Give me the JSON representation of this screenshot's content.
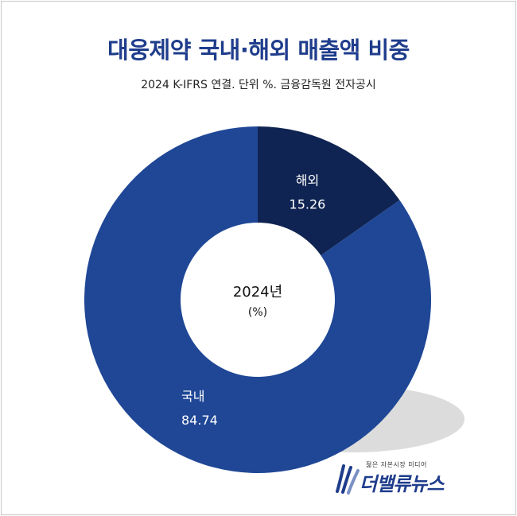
{
  "title": "대웅제약 국내·해외 매출액 비중",
  "subtitle": "2024 K-IFRS 연결. 단위 %. 금융감독원 전자공시",
  "center": {
    "line1": "2024년",
    "line2": "(%)"
  },
  "logo": {
    "tagline": "젊은 자본시장 미디어",
    "name": "더밸류뉴스",
    "icon": "wave-logo-icon"
  },
  "colors": {
    "domestic": "#1f4796",
    "overseas": "#0f2452",
    "shadow": "#dcdcdc",
    "title": "#1f3d8c"
  },
  "chart_data": {
    "type": "pie",
    "donut": true,
    "categories": [
      "해외",
      "국내"
    ],
    "values": [
      15.26,
      84.74
    ],
    "labels": [
      {
        "name": "해외",
        "value": "15.26"
      },
      {
        "name": "국내",
        "value": "84.74"
      }
    ],
    "start": "12 o'clock",
    "direction": "clockwise"
  }
}
